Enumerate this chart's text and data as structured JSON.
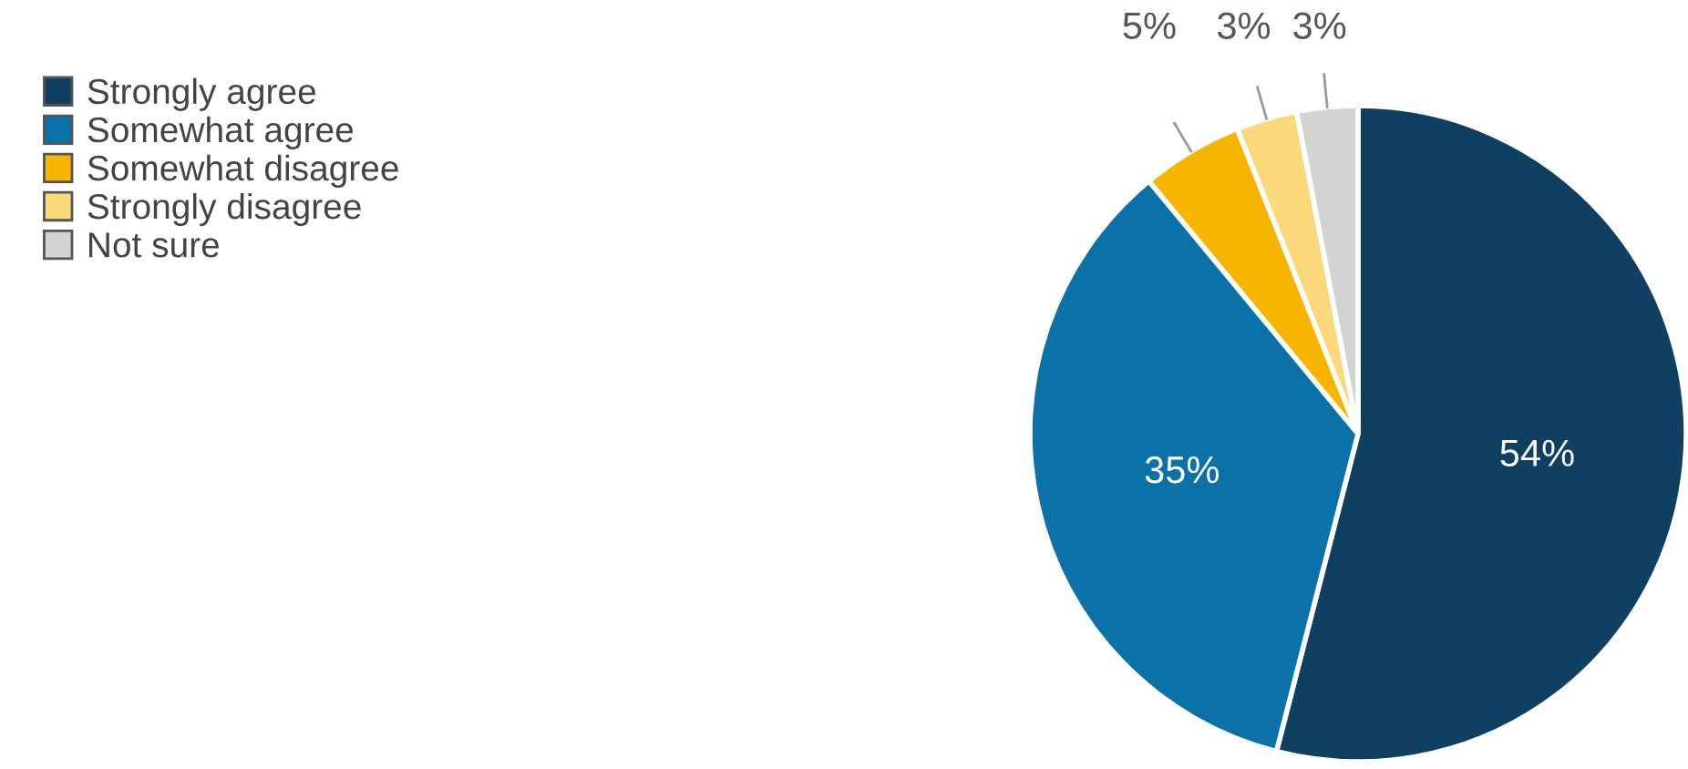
{
  "chart_data": {
    "type": "pie",
    "categories": [
      "Strongly agree",
      "Somewhat agree",
      "Somewhat disagree",
      "Strongly disagree",
      "Not sure"
    ],
    "values": [
      54,
      35,
      5,
      3,
      3
    ],
    "colors": [
      "#0f3f61",
      "#0a72a8",
      "#f7b500",
      "#fbd97a",
      "#d3d3d3"
    ],
    "value_labels": [
      "54%",
      "35%",
      "5%",
      "3%",
      "3%"
    ],
    "legend": "top left"
  }
}
